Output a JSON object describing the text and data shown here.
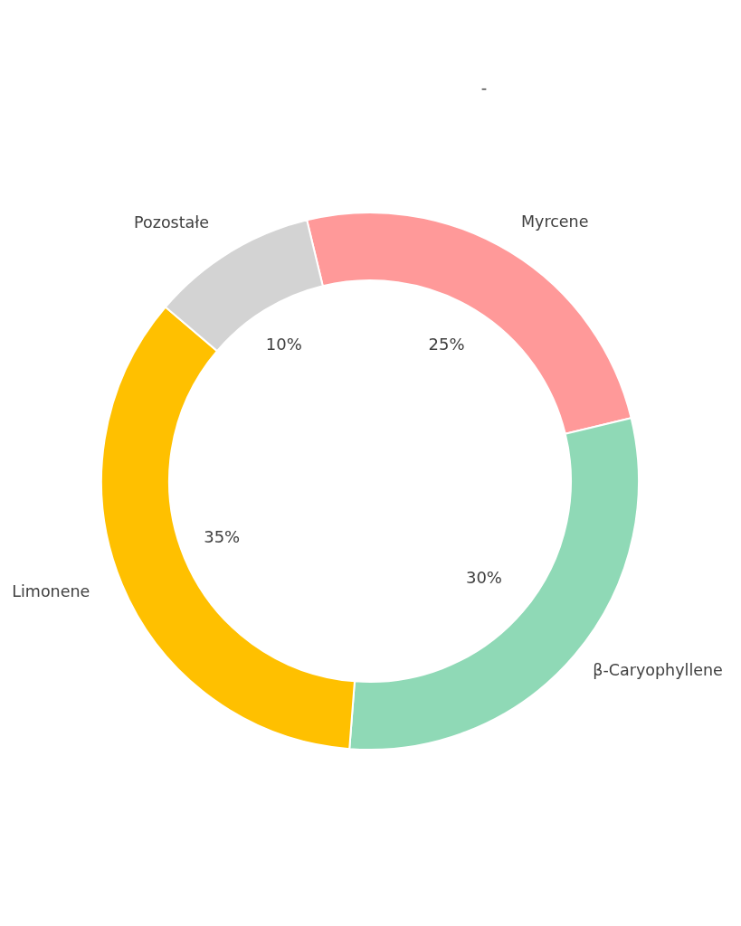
{
  "chart_data": {
    "type": "donut",
    "title": "-",
    "categories": [
      "Myrcene",
      "β-Caryophyllene",
      "Limonene",
      "Pozostałe"
    ],
    "values": [
      25,
      30,
      35,
      10
    ],
    "colors": [
      "#ff9999",
      "#8fd9b6",
      "#ffc000",
      "#d3d3d3"
    ],
    "value_labels": [
      "25%",
      "30%",
      "35%",
      "10%"
    ],
    "legend": false
  }
}
